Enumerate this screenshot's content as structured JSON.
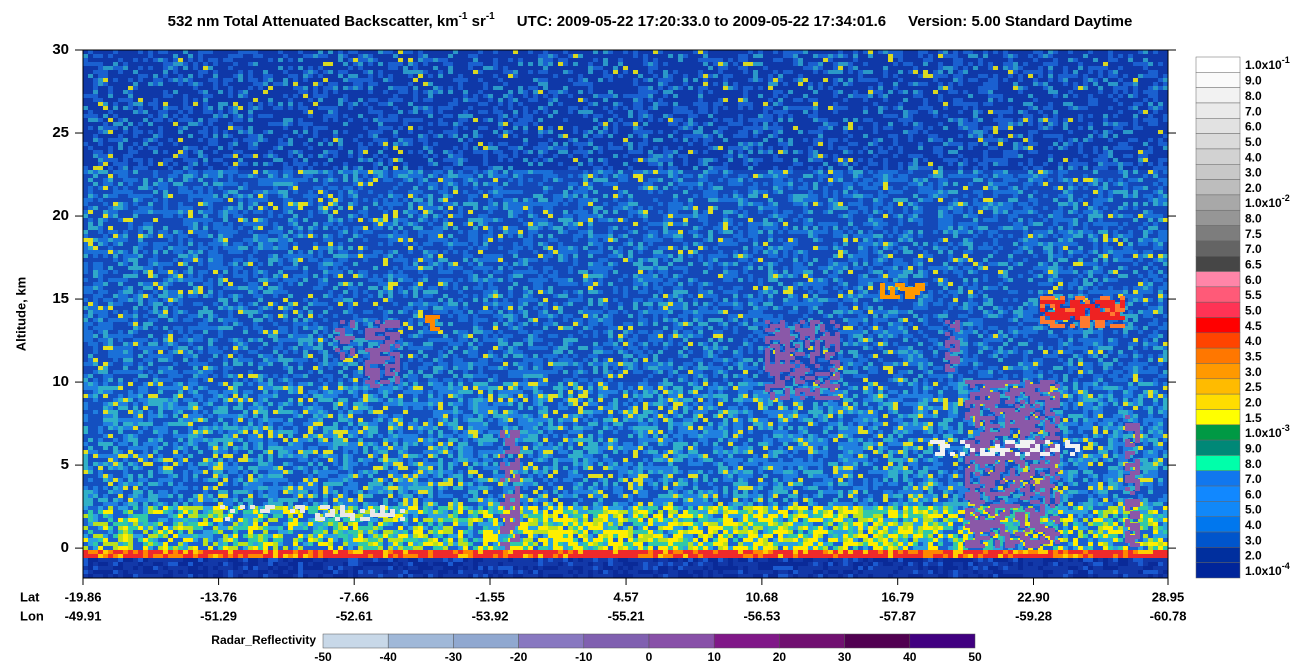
{
  "chart_data": {
    "type": "heatmap",
    "title_parts": [
      "532 nm Total Attenuated Backscatter, km",
      "-1",
      " sr",
      "-1",
      "UTC:  2009-05-22 17:20:33.0  to  2009-05-22 17:34:01.6",
      "Version: 5.00  Standard  Daytime"
    ],
    "ylabel": "Altitude, km",
    "ylim": [
      -1.8,
      30
    ],
    "yticks": [
      0,
      5,
      10,
      15,
      20,
      25,
      30
    ],
    "lat_label": "Lat",
    "lon_label": "Lon",
    "xlim": [
      -19.86,
      28.95
    ],
    "xticks": [
      -19.86,
      -13.76,
      -7.66,
      -1.55,
      4.57,
      10.68,
      16.79,
      {
        "value": 22.9,
        "label": "22.90"
      },
      28.95
    ],
    "lon_labels": [
      "-49.91",
      "-51.29",
      "-52.61",
      "-53.92",
      "-55.21",
      "-56.53",
      "-57.87",
      "-59.28",
      "-60.78"
    ],
    "backscatter_colorbar": {
      "labels": [
        {
          "text": "1.0x10",
          "exp": "-1"
        },
        "9.0",
        "8.0",
        "7.0",
        "6.0",
        "5.0",
        "4.0",
        "3.0",
        "2.0",
        {
          "text": "1.0x10",
          "exp": "-2"
        },
        "8.0",
        "7.5",
        "7.0",
        "6.5",
        "6.0",
        "5.5",
        "5.0",
        "4.5",
        "4.0",
        "3.5",
        "3.0",
        "2.5",
        "2.0",
        "1.5",
        {
          "text": "1.0x10",
          "exp": "-3"
        },
        "9.0",
        "8.0",
        "7.0",
        "6.0",
        "5.0",
        "4.0",
        "3.0",
        "2.0",
        {
          "text": "1.0x10",
          "exp": "-4"
        }
      ],
      "colors": [
        "#ffffff",
        "#fafafa",
        "#f2f2f2",
        "#eaeaea",
        "#e2e2e2",
        "#dadada",
        "#d2d2d2",
        "#c8c8c8",
        "#bdbdbd",
        "#a8a8a8",
        "#969696",
        "#7d7d7d",
        "#646464",
        "#464646",
        "#ff85a8",
        "#ff5a78",
        "#ff3355",
        "#ff0000",
        "#ff4400",
        "#ff7700",
        "#ff9900",
        "#ffbb00",
        "#ffdd00",
        "#ffff00",
        "#009944",
        "#008877",
        "#00ffaa",
        "#1177ee",
        "#1188ff",
        "#1188f8",
        "#0077ee",
        "#0055cc",
        "#002f9e",
        "#00259a"
      ]
    },
    "radar_colorbar": {
      "label": "Radar_Reflectivity",
      "ticks": [
        -50,
        -40,
        -30,
        -20,
        -10,
        0,
        10,
        20,
        30,
        40,
        50
      ],
      "colors": [
        "#c8d8e8",
        "#a0b8d8",
        "#90a8d0",
        "#8878c0",
        "#8060b0",
        "#8850a8",
        "#801888",
        "#701070",
        "#500050",
        "#400080"
      ]
    }
  }
}
